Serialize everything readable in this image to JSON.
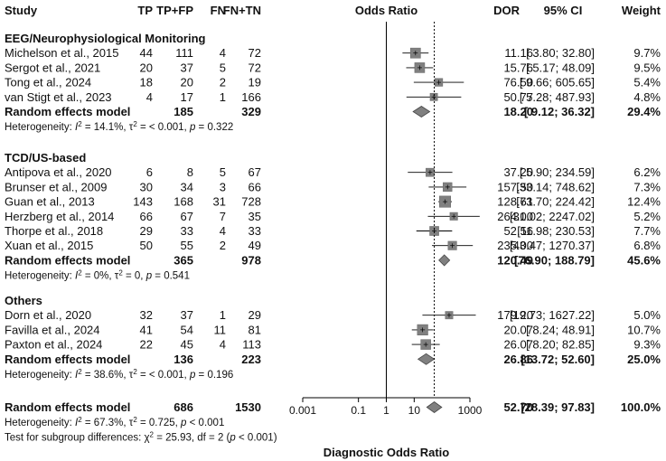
{
  "chart_data": {
    "type": "forest",
    "headers": {
      "study": "Study",
      "tp": "TP",
      "tpfp": "TP+FP",
      "fn": "FN",
      "fntn": "FN+TN",
      "plot": "Odds Ratio",
      "dor": "DOR",
      "ci": "95% CI",
      "weight": "Weight"
    },
    "x_axis": {
      "label": "Diagnostic Odds Ratio",
      "scale": "log",
      "ticks": [
        "0.001",
        "0.1",
        "1",
        "10",
        "1000"
      ],
      "tick_values": [
        0.001,
        0.1,
        1,
        10,
        1000
      ],
      "xlim": [
        0.001,
        1000
      ]
    },
    "reference_line": 1,
    "overall_line": 52.7,
    "groups": [
      {
        "name": "EEG/Neurophysiological Monitoring",
        "studies": [
          {
            "study": "Michelson et al., 2015",
            "tp": "44",
            "tpfp": "111",
            "fn": "4",
            "fntn": "72",
            "dor": 11.16,
            "lo": 3.8,
            "hi": 32.8,
            "dor_text": "11.16",
            "ci_text": "[ 3.80;  32.80]",
            "weight": "9.7%",
            "w": 9.7
          },
          {
            "study": "Sergot et al., 2021",
            "tp": "20",
            "tpfp": "37",
            "fn": "5",
            "fntn": "72",
            "dor": 15.76,
            "lo": 5.17,
            "hi": 48.09,
            "dor_text": "15.76",
            "ci_text": "[ 5.17;  48.09]",
            "weight": "9.5%",
            "w": 9.5
          },
          {
            "study": "Tong et al., 2024",
            "tp": "18",
            "tpfp": "20",
            "fn": "2",
            "fntn": "19",
            "dor": 76.5,
            "lo": 9.66,
            "hi": 605.65,
            "dor_text": "76.50",
            "ci_text": "[ 9.66; 605.65]",
            "weight": "5.4%",
            "w": 5.4
          },
          {
            "study": "van Stigt et al., 2023",
            "tp": "4",
            "tpfp": "17",
            "fn": "1",
            "fntn": "166",
            "dor": 50.77,
            "lo": 5.28,
            "hi": 487.93,
            "dor_text": "50.77",
            "ci_text": "[ 5.28; 487.93]",
            "weight": "4.8%",
            "w": 4.8
          }
        ],
        "model": {
          "label": "Random effects model",
          "tpfp": "185",
          "fntn": "329",
          "dor": 18.2,
          "lo": 9.12,
          "hi": 36.32,
          "dor_text": "18.20",
          "ci_text": "[ 9.12;  36.32]",
          "weight": "29.4%"
        },
        "heterogeneity": {
          "prefix": "Heterogeneity: ",
          "i2": "14.1%",
          "tau2": "< 0.001",
          "p": "0.322"
        }
      },
      {
        "name": "TCD/US-based",
        "studies": [
          {
            "study": "Antipova et al., 2020",
            "tp": "6",
            "tpfp": "8",
            "fn": "5",
            "fntn": "67",
            "dor": 37.2,
            "lo": 5.9,
            "hi": 234.59,
            "dor_text": "37.20",
            "ci_text": "[ 5.90;  234.59]",
            "weight": "6.2%",
            "w": 6.2
          },
          {
            "study": "Brunser et al., 2009",
            "tp": "30",
            "tpfp": "34",
            "fn": "3",
            "fntn": "66",
            "dor": 157.5,
            "lo": 33.14,
            "hi": 748.62,
            "dor_text": "157.50",
            "ci_text": "[33.14;  748.62]",
            "weight": "7.3%",
            "w": 7.3
          },
          {
            "study": "Guan et al., 2013",
            "tp": "143",
            "tpfp": "168",
            "fn": "31",
            "fntn": "728",
            "dor": 128.61,
            "lo": 73.7,
            "hi": 224.42,
            "dor_text": "128.61",
            "ci_text": "[73.70;  224.42]",
            "weight": "12.4%",
            "w": 12.4
          },
          {
            "study": "Herzberg et al., 2014",
            "tp": "66",
            "tpfp": "67",
            "fn": "7",
            "fntn": "35",
            "dor": 264.0,
            "lo": 31.02,
            "hi": 2247.02,
            "dor_text": "264.00",
            "ci_text": "[31.02; 2247.02]",
            "weight": "5.2%",
            "w": 5.2
          },
          {
            "study": "Thorpe et al., 2018",
            "tp": "29",
            "tpfp": "33",
            "fn": "4",
            "fntn": "33",
            "dor": 52.56,
            "lo": 11.98,
            "hi": 230.53,
            "dor_text": "52.56",
            "ci_text": "[11.98;  230.53]",
            "weight": "7.7%",
            "w": 7.7
          },
          {
            "study": "Xuan et al., 2015",
            "tp": "50",
            "tpfp": "55",
            "fn": "2",
            "fntn": "49",
            "dor": 235.0,
            "lo": 43.47,
            "hi": 1270.37,
            "dor_text": "235.00",
            "ci_text": "[43.47; 1270.37]",
            "weight": "6.8%",
            "w": 6.8
          }
        ],
        "model": {
          "label": "Random effects model",
          "tpfp": "365",
          "fntn": "978",
          "dor": 120.49,
          "lo": 76.9,
          "hi": 188.79,
          "dor_text": "120.49",
          "ci_text": "[76.90;  188.79]",
          "weight": "45.6%"
        },
        "heterogeneity": {
          "prefix": "Heterogeneity: ",
          "i2": "0%",
          "tau2": "0",
          "p": "0.541"
        }
      },
      {
        "name": "Others",
        "studies": [
          {
            "study": "Dorn et al., 2020",
            "tp": "32",
            "tpfp": "37",
            "fn": "1",
            "fntn": "29",
            "dor": 179.2,
            "lo": 19.73,
            "hi": 1627.22,
            "dor_text": "179.20",
            "ci_text": "[19.73; 1627.22]",
            "weight": "5.0%",
            "w": 5.0
          },
          {
            "study": "Favilla et al., 2024",
            "tp": "41",
            "tpfp": "54",
            "fn": "11",
            "fntn": "81",
            "dor": 20.07,
            "lo": 8.24,
            "hi": 48.91,
            "dor_text": "20.07",
            "ci_text": "[ 8.24;  48.91]",
            "weight": "10.7%",
            "w": 10.7
          },
          {
            "study": "Paxton et al., 2024",
            "tp": "22",
            "tpfp": "45",
            "fn": "4",
            "fntn": "113",
            "dor": 26.07,
            "lo": 8.2,
            "hi": 82.85,
            "dor_text": "26.07",
            "ci_text": "[ 8.20;  82.85]",
            "weight": "9.3%",
            "w": 9.3
          }
        ],
        "model": {
          "label": "Random effects model",
          "tpfp": "136",
          "fntn": "223",
          "dor": 26.86,
          "lo": 13.72,
          "hi": 52.6,
          "dor_text": "26.86",
          "ci_text": "[13.72;  52.60]",
          "weight": "25.0%"
        },
        "heterogeneity": {
          "prefix": "Heterogeneity: ",
          "i2": "38.6%",
          "tau2": "< 0.001",
          "p": "0.196"
        }
      }
    ],
    "overall": {
      "label": "Random effects model",
      "tpfp": "686",
      "fntn": "1530",
      "dor": 52.7,
      "lo": 28.39,
      "hi": 97.83,
      "dor_text": "52.70",
      "ci_text": "[28.39;  97.83]",
      "weight": "100.0%",
      "heterogeneity": {
        "prefix": "Heterogeneity: ",
        "i2": "67.3%",
        "tau2": "0.725",
        "p": "< 0.001"
      }
    },
    "subgroup_test": {
      "prefix": "Test for subgroup differences: ",
      "chi2": "25.93",
      "df": "2",
      "p": "< 0.001"
    },
    "colors": {
      "square": "#808080",
      "diamond": "#808080",
      "line": "#000000"
    }
  }
}
